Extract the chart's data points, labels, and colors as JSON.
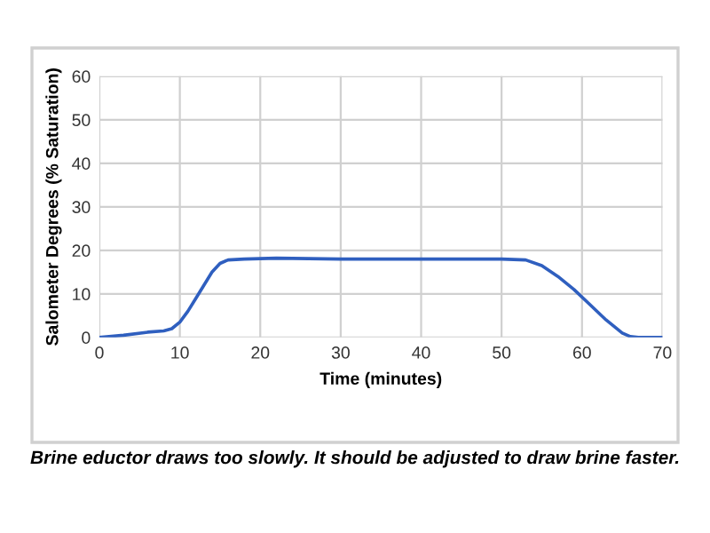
{
  "chart_data": {
    "type": "line",
    "xlabel": "Time (minutes)",
    "ylabel": "Salometer Degrees (% Saturation)",
    "annotations": [
      "Brine eductor draws too slowly. It should be adjusted to draw brine faster."
    ],
    "x": [
      0,
      3,
      6,
      8,
      9,
      10,
      11,
      12,
      13,
      14,
      15,
      16,
      18,
      22,
      30,
      40,
      50,
      53,
      55,
      57,
      59,
      61,
      63,
      65,
      66,
      67,
      70
    ],
    "series": [
      {
        "color": "#2f5fbf",
        "values": [
          0,
          0.5,
          1.2,
          1.5,
          2,
          3.5,
          6,
          9,
          12,
          15,
          17,
          17.8,
          18,
          18.2,
          18,
          18,
          18,
          17.8,
          16.5,
          14,
          11,
          7.5,
          4,
          1,
          0.2,
          0,
          0
        ]
      }
    ],
    "xlim": [
      0,
      70
    ],
    "xticks": [
      0,
      10,
      20,
      30,
      40,
      50,
      60,
      70
    ],
    "ylim": [
      0,
      60
    ],
    "yticks": [
      0,
      10,
      20,
      30,
      40,
      50,
      60
    ],
    "grid": true,
    "legend": false,
    "marker": "none",
    "line_style": "solid"
  }
}
